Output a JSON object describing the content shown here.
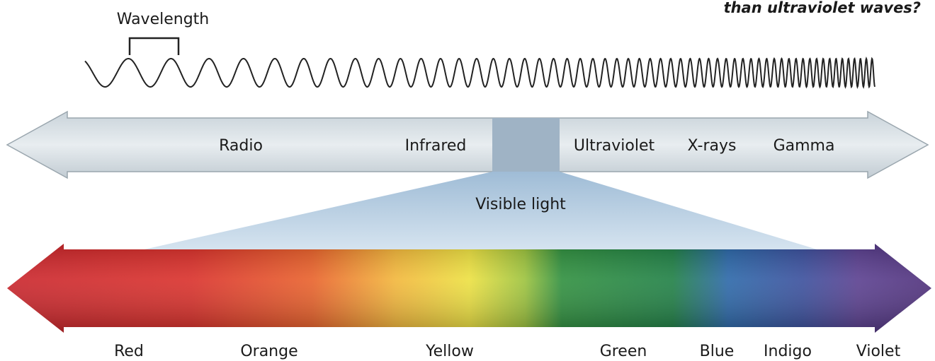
{
  "question_fragment": "than ultraviolet waves?",
  "wave_label": "Wavelength",
  "spectrum": {
    "bands": [
      "Radio",
      "Infrared",
      "Ultraviolet",
      "X-rays",
      "Gamma"
    ],
    "visible_label": "Visible light"
  },
  "visible_colors": [
    "Red",
    "Orange",
    "Yellow",
    "Green",
    "Blue",
    "Indigo",
    "Violet"
  ]
}
